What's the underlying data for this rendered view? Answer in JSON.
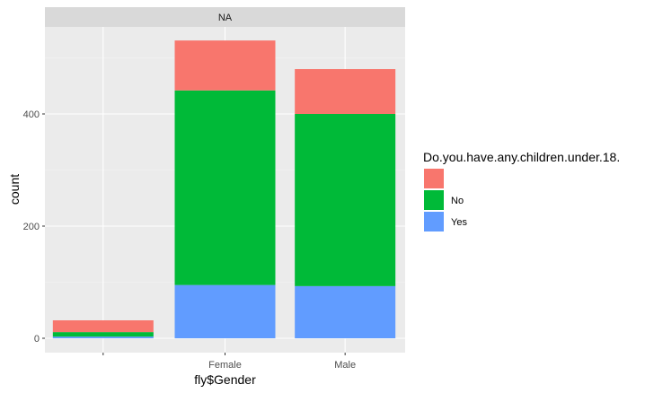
{
  "chart_data": {
    "type": "bar",
    "stacked": true,
    "facet_label": "NA",
    "categories": [
      "",
      "Female",
      "Male"
    ],
    "series": [
      {
        "name": "",
        "color": "#F8766D",
        "values": [
          21,
          89,
          80
        ]
      },
      {
        "name": "No",
        "color": "#00BA38",
        "values": [
          8,
          347,
          307
        ]
      },
      {
        "name": "Yes",
        "color": "#619CFF",
        "values": [
          3,
          95,
          93
        ]
      }
    ],
    "stack_order_bottom_to_top": [
      "Yes",
      "No",
      ""
    ],
    "xlabel": "fly$Gender",
    "ylabel": "count",
    "ylim": [
      -10,
      560
    ],
    "yticks": [
      0,
      200,
      400
    ],
    "grid": true,
    "legend": {
      "title": "Do.you.have.any.children.under.18.",
      "placement": "right"
    }
  }
}
